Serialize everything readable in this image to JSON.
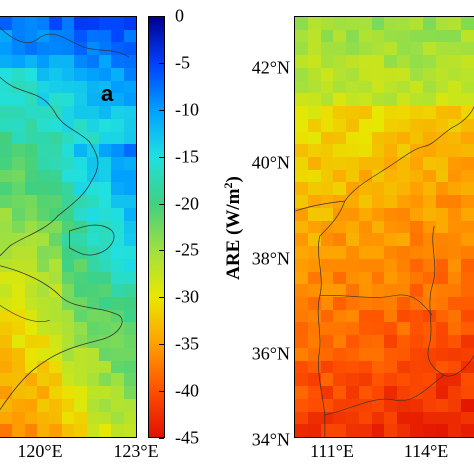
{
  "panel_a": {
    "letter": "a",
    "x_ticks": [
      "120°E",
      "123°E"
    ]
  },
  "colorbar": {
    "ticks": [
      "0",
      "-5",
      "-10",
      "-15",
      "-20",
      "-25",
      "-30",
      "-35",
      "-40",
      "-45"
    ],
    "label_main": "ARE (W/m",
    "label_sup": "2",
    "label_end": ")"
  },
  "panel_b": {
    "x_ticks": [
      "111°E",
      "114°E"
    ],
    "y_ticks": [
      "42°N",
      "40°N",
      "38°N",
      "36°N",
      "34°N"
    ]
  },
  "colors": {
    "scale": [
      "#00008f",
      "#0040ff",
      "#00a0ff",
      "#20e0e0",
      "#40d080",
      "#a0e040",
      "#e8e800",
      "#ffa000",
      "#ff5000",
      "#e01000"
    ]
  }
}
